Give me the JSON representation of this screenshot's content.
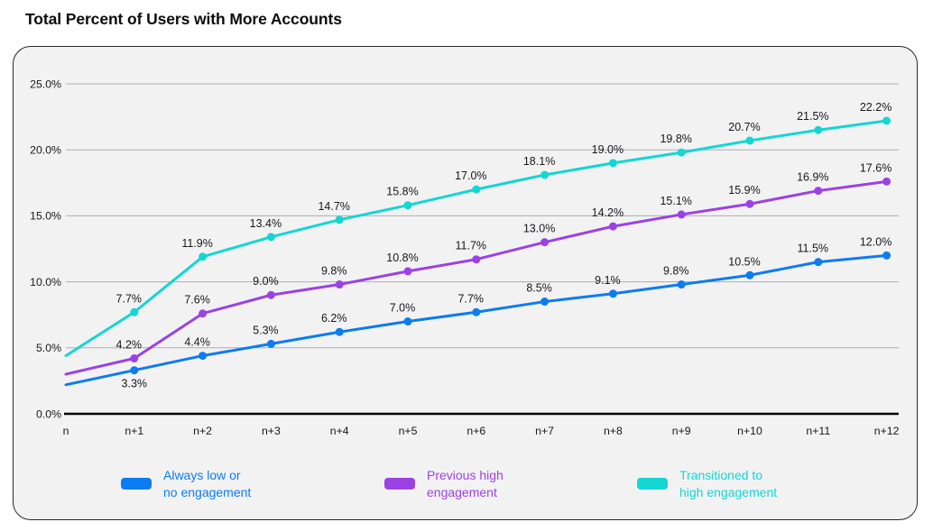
{
  "chart_data": {
    "type": "line",
    "title": "Total Percent of Users with More Accounts",
    "categories": [
      "n",
      "n+1",
      "n+2",
      "n+3",
      "n+4",
      "n+5",
      "n+6",
      "n+7",
      "n+8",
      "n+9",
      "n+10",
      "n+11",
      "n+12"
    ],
    "xlabel": "",
    "ylabel": "",
    "ylim": [
      0,
      25
    ],
    "y_ticks": [
      "0.0%",
      "5.0%",
      "10.0%",
      "15.0%",
      "20.0%",
      "25.0%"
    ],
    "grid": "horizontal",
    "legend_position": "bottom",
    "series": [
      {
        "name": "Always low or no engagement",
        "legend_lines": [
          "Always low or",
          "no engagement"
        ],
        "color": "#0d7bf2",
        "values": [
          2.2,
          3.3,
          4.4,
          5.3,
          6.2,
          7.0,
          7.7,
          8.5,
          9.1,
          9.8,
          10.5,
          11.5,
          12.0
        ],
        "data_labels": [
          null,
          "3.3%",
          "4.4%",
          "5.3%",
          "6.2%",
          "7.0%",
          "7.7%",
          "8.5%",
          "9.1%",
          "9.8%",
          "10.5%",
          "11.5%",
          "12.0%"
        ]
      },
      {
        "name": "Previous high engagement",
        "legend_lines": [
          "Previous high",
          "engagement"
        ],
        "color": "#9b42e3",
        "values": [
          3.0,
          4.2,
          7.6,
          9.0,
          9.8,
          10.8,
          11.7,
          13.0,
          14.2,
          15.1,
          15.9,
          16.9,
          17.6
        ],
        "data_labels": [
          null,
          "4.2%",
          "7.6%",
          "9.0%",
          "9.8%",
          "10.8%",
          "11.7%",
          "13.0%",
          "14.2%",
          "15.1%",
          "15.9%",
          "16.9%",
          "17.6%"
        ]
      },
      {
        "name": "Transitioned to high engagement",
        "legend_lines": [
          "Transitioned to",
          "high engagement"
        ],
        "color": "#14d6d2",
        "values": [
          4.4,
          7.7,
          11.9,
          13.4,
          14.7,
          15.8,
          17.0,
          18.1,
          19.0,
          19.8,
          20.7,
          21.5,
          22.2
        ],
        "data_labels": [
          null,
          "7.7%",
          "11.9%",
          "13.4%",
          "14.7%",
          "15.8%",
          "17.0%",
          "18.1%",
          "19.0%",
          "19.8%",
          "20.7%",
          "21.5%",
          "22.2%"
        ]
      }
    ],
    "theme": {
      "card_background": "#f2f2f3",
      "card_border": "#28282c",
      "grid_color": "#aeaeb0",
      "axis_color": "#000000",
      "tick_text_color": "#17181a",
      "data_label_color": "#17181a",
      "title_color": "#0b0c0d"
    }
  }
}
